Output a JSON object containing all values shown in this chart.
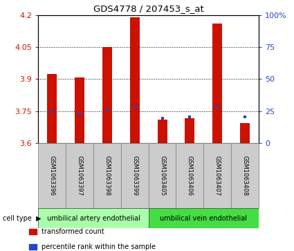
{
  "title": "GDS4778 / 207453_s_at",
  "samples": [
    "GSM1063396",
    "GSM1063397",
    "GSM1063398",
    "GSM1063399",
    "GSM1063405",
    "GSM1063406",
    "GSM1063407",
    "GSM1063408"
  ],
  "red_values": [
    3.925,
    3.908,
    4.05,
    4.19,
    3.71,
    3.715,
    4.16,
    3.695
  ],
  "blue_values": [
    3.748,
    3.738,
    3.752,
    3.768,
    3.716,
    3.722,
    3.768,
    3.722
  ],
  "ymin": 3.6,
  "ymax": 4.2,
  "yticks": [
    3.6,
    3.75,
    3.9,
    4.05,
    4.2
  ],
  "ytick_labels": [
    "3.6",
    "3.75",
    "3.9",
    "4.05",
    "4.2"
  ],
  "right_yticks": [
    0,
    25,
    50,
    75,
    100
  ],
  "right_ytick_labels": [
    "0",
    "25",
    "50",
    "75",
    "100%"
  ],
  "bar_color": "#cc1100",
  "blue_color": "#2244cc",
  "baseline": 3.6,
  "cell_types": [
    {
      "label": "umbilical artery endothelial",
      "start": 0,
      "end": 4,
      "color": "#aaffaa"
    },
    {
      "label": "umbilical vein endothelial",
      "start": 4,
      "end": 8,
      "color": "#44dd44"
    }
  ],
  "legend_items": [
    {
      "color": "#cc1100",
      "label": "transformed count"
    },
    {
      "color": "#2244cc",
      "label": "percentile rank within the sample"
    }
  ],
  "bar_width": 0.35,
  "label_color_red": "#cc1100",
  "label_color_blue": "#2244cc",
  "grid_lines": [
    3.75,
    3.9,
    4.05
  ],
  "sample_box_color": "#cccccc"
}
